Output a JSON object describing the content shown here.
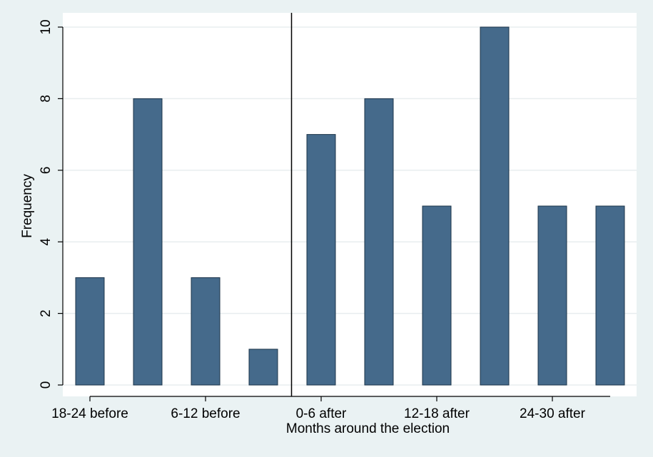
{
  "chart_data": {
    "type": "bar",
    "categories": [
      "",
      "",
      "",
      "",
      "",
      "",
      "",
      "",
      "",
      ""
    ],
    "values": [
      3,
      8,
      3,
      1,
      7,
      8,
      5,
      10,
      5,
      5
    ],
    "x_tick_labels": [
      "18-24 before",
      "6-12 before",
      "0-6 after",
      "12-18 after",
      "24-30 after"
    ],
    "y_ticks": [
      0,
      2,
      4,
      6,
      8,
      10
    ],
    "ylim": [
      0,
      10
    ],
    "xlabel": "Months around the election",
    "ylabel": "Frequency",
    "title": "",
    "grid": true,
    "divider_between": [
      3,
      4
    ],
    "bar_color": "#456a8b",
    "bar_edge_color": "#1c3449",
    "plot_background": "#ffffff",
    "page_background": "#eaf2f3",
    "gridline_color": "#e8edef"
  }
}
